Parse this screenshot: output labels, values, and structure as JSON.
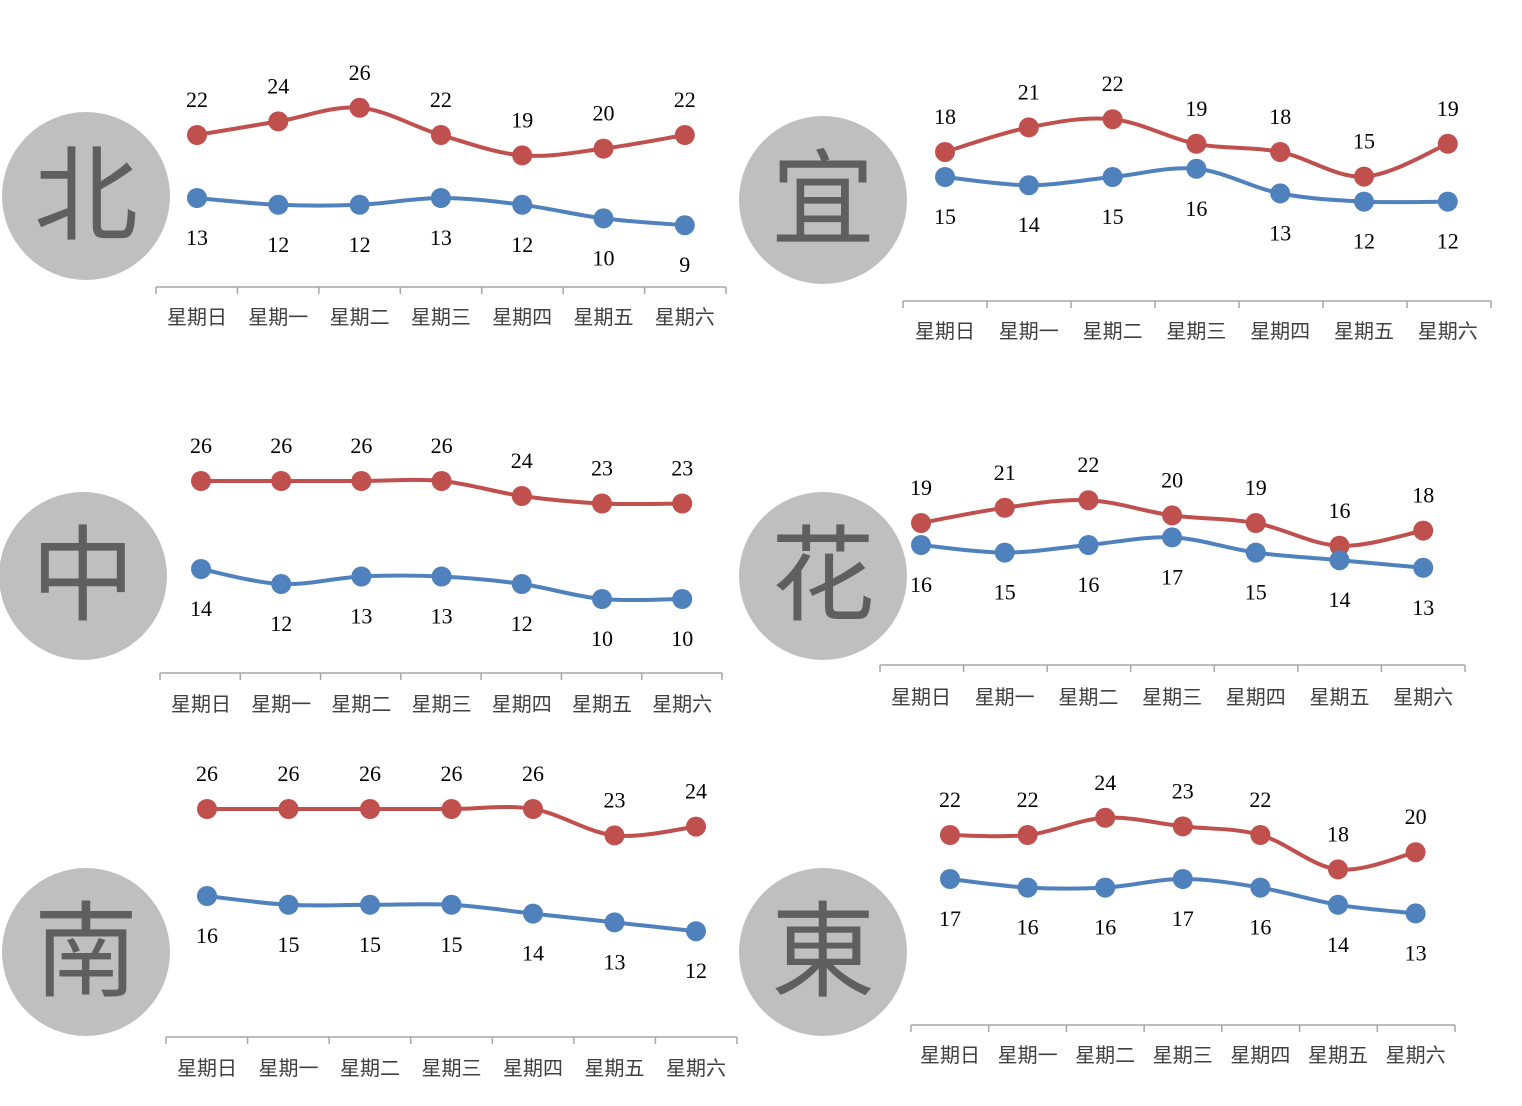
{
  "colors": {
    "high": "#c0504d",
    "low": "#4f81bd",
    "axis": "#a6a6a6",
    "badge": "#bfbfbf",
    "badge_text": "#5f5f5f"
  },
  "chart_data": [
    {
      "type": "line",
      "region": "北",
      "categories": [
        "星期日",
        "星期一",
        "星期二",
        "星期三",
        "星期四",
        "星期五",
        "星期六"
      ],
      "series": [
        {
          "values": [
            22,
            24,
            26,
            22,
            19,
            20,
            22
          ]
        },
        {
          "values": [
            13,
            12,
            12,
            13,
            12,
            10,
            9
          ]
        }
      ]
    },
    {
      "type": "line",
      "region": "宜",
      "categories": [
        "星期日",
        "星期一",
        "星期二",
        "星期三",
        "星期四",
        "星期五",
        "星期六"
      ],
      "series": [
        {
          "values": [
            18,
            21,
            22,
            19,
            18,
            15,
            19
          ]
        },
        {
          "values": [
            15,
            14,
            15,
            16,
            13,
            12,
            12
          ]
        }
      ]
    },
    {
      "type": "line",
      "region": "中",
      "categories": [
        "星期日",
        "星期一",
        "星期二",
        "星期三",
        "星期四",
        "星期五",
        "星期六"
      ],
      "series": [
        {
          "values": [
            26,
            26,
            26,
            26,
            24,
            23,
            23
          ]
        },
        {
          "values": [
            14,
            12,
            13,
            13,
            12,
            10,
            10
          ]
        }
      ]
    },
    {
      "type": "line",
      "region": "花",
      "categories": [
        "星期日",
        "星期一",
        "星期二",
        "星期三",
        "星期四",
        "星期五",
        "星期六"
      ],
      "series": [
        {
          "values": [
            19,
            21,
            22,
            20,
            19,
            16,
            18
          ]
        },
        {
          "values": [
            16,
            15,
            16,
            17,
            15,
            14,
            13
          ]
        }
      ]
    },
    {
      "type": "line",
      "region": "南",
      "categories": [
        "星期日",
        "星期一",
        "星期二",
        "星期三",
        "星期四",
        "星期五",
        "星期六"
      ],
      "series": [
        {
          "values": [
            26,
            26,
            26,
            26,
            26,
            23,
            24
          ]
        },
        {
          "values": [
            16,
            15,
            15,
            15,
            14,
            13,
            12
          ]
        }
      ]
    },
    {
      "type": "line",
      "region": "東",
      "categories": [
        "星期日",
        "星期一",
        "星期二",
        "星期三",
        "星期四",
        "星期五",
        "星期六"
      ],
      "series": [
        {
          "values": [
            22,
            22,
            24,
            23,
            22,
            18,
            20
          ]
        },
        {
          "values": [
            17,
            16,
            16,
            17,
            16,
            14,
            13
          ]
        }
      ]
    }
  ]
}
